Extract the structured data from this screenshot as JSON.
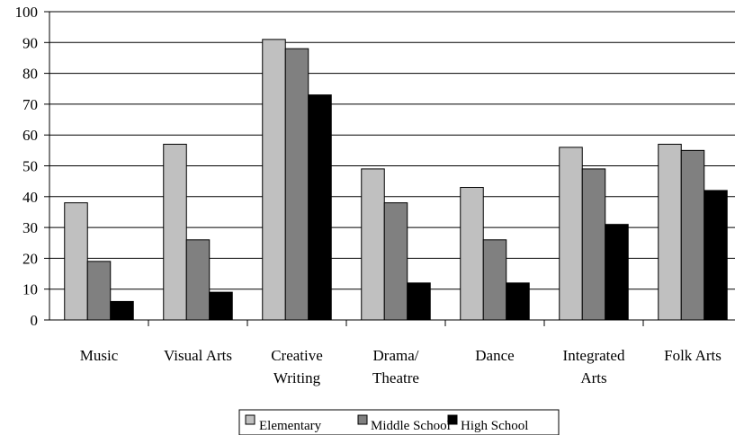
{
  "chart_data": {
    "type": "bar",
    "categories": [
      [
        "Music"
      ],
      [
        "Visual Arts"
      ],
      [
        "Creative",
        "Writing"
      ],
      [
        "Drama/",
        "Theatre"
      ],
      [
        "Dance"
      ],
      [
        "Integrated",
        "Arts"
      ],
      [
        "Folk Arts"
      ]
    ],
    "series": [
      {
        "name": "Elementary",
        "color": "#c0c0c0",
        "values": [
          38,
          57,
          91,
          49,
          43,
          56,
          57
        ]
      },
      {
        "name": "Middle School",
        "color": "#808080",
        "values": [
          19,
          26,
          88,
          38,
          26,
          49,
          55
        ]
      },
      {
        "name": "High School",
        "color": "#000000",
        "values": [
          6,
          9,
          73,
          12,
          12,
          31,
          42
        ]
      }
    ],
    "title": "",
    "xlabel": "",
    "ylabel": "",
    "ylim": [
      0,
      100
    ],
    "yticks": [
      "0",
      "10",
      "20",
      "30",
      "40",
      "50",
      "60",
      "70",
      "80",
      "90",
      "100"
    ],
    "grid": true,
    "legend_position": "bottom"
  }
}
